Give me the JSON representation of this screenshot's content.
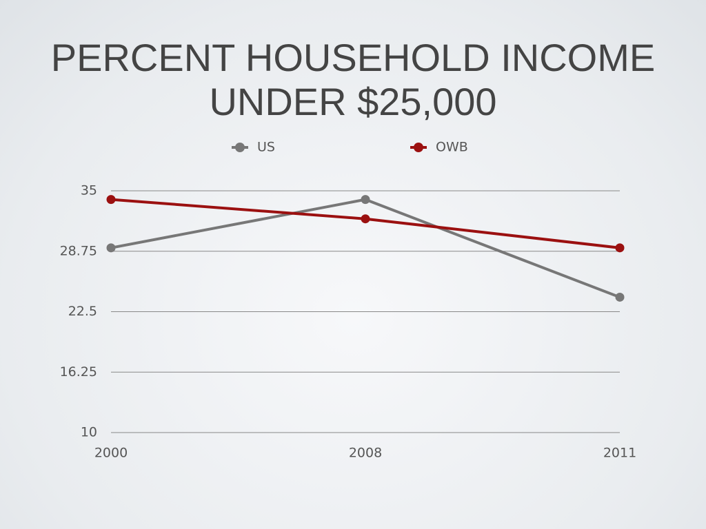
{
  "chart_data": {
    "type": "line",
    "title": "PERCENT HOUSEHOLD INCOME UNDER $25,000",
    "categories": [
      "2000",
      "2008",
      "2011"
    ],
    "series": [
      {
        "name": "US",
        "color": "#777777",
        "values": [
          29.1,
          34.1,
          24.0
        ]
      },
      {
        "name": "OWB",
        "color": "#9b1010",
        "values": [
          34.1,
          32.1,
          29.1
        ]
      }
    ],
    "ylim": [
      10,
      35
    ],
    "yticks": [
      10,
      16.25,
      22.5,
      28.75,
      35
    ],
    "grid": true,
    "legend": "top"
  }
}
